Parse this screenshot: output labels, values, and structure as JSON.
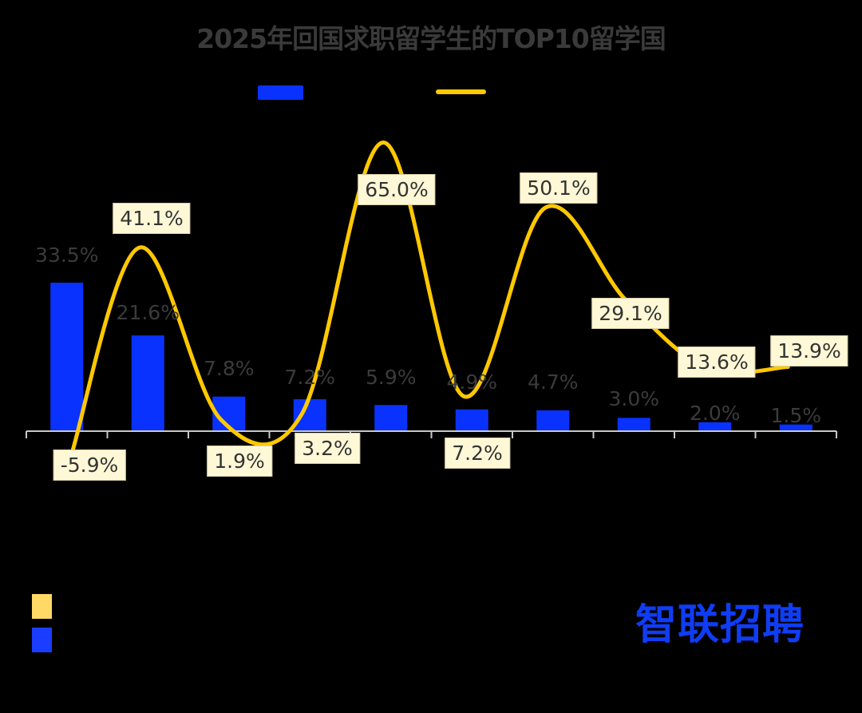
{
  "title": "2025年回国求职留学生的TOP10留学国",
  "legend": [
    {
      "name": "bar-series",
      "label": "",
      "color": "#0a32ff",
      "type": "bar"
    },
    {
      "name": "line-series",
      "label": "",
      "color": "#ffc800",
      "type": "line"
    }
  ],
  "notes": [
    {
      "color": "#ffd966",
      "label": ""
    },
    {
      "color": "#1a3dff",
      "label": ""
    }
  ],
  "logo": {
    "text": "智联招聘",
    "brand_color": "#0f3df5",
    "accent_color": "#ffc800"
  },
  "bar_labels": [
    "33.5%",
    "21.6%",
    "7.8%",
    "7.2%",
    "5.9%",
    "4.9%",
    "4.7%",
    "3.0%",
    "2.0%",
    "1.5%"
  ],
  "line_labels": [
    "-5.9%",
    "41.1%",
    "1.9%",
    "3.2%",
    "65.0%",
    "7.2%",
    "50.1%",
    "29.1%",
    "13.6%",
    "13.9%"
  ],
  "chart_data": {
    "type": "bar",
    "title": "2025年回国求职留学生的TOP10留学国",
    "categories": [
      "",
      "",
      "",
      "",
      "",
      "",
      "",
      "",
      "",
      ""
    ],
    "series": [
      {
        "name": "",
        "type": "bar",
        "color": "#0a32ff",
        "values": [
          33.5,
          21.6,
          7.8,
          7.2,
          5.9,
          4.9,
          4.7,
          3.0,
          2.0,
          1.5
        ]
      },
      {
        "name": "",
        "type": "line",
        "color": "#ffc800",
        "values": [
          -5.9,
          41.1,
          1.9,
          3.2,
          65.0,
          7.2,
          50.1,
          29.1,
          13.6,
          13.9
        ]
      }
    ],
    "xlabel": "",
    "ylabel": "",
    "value_format": "percent",
    "grid": false,
    "legend_position": "top"
  }
}
